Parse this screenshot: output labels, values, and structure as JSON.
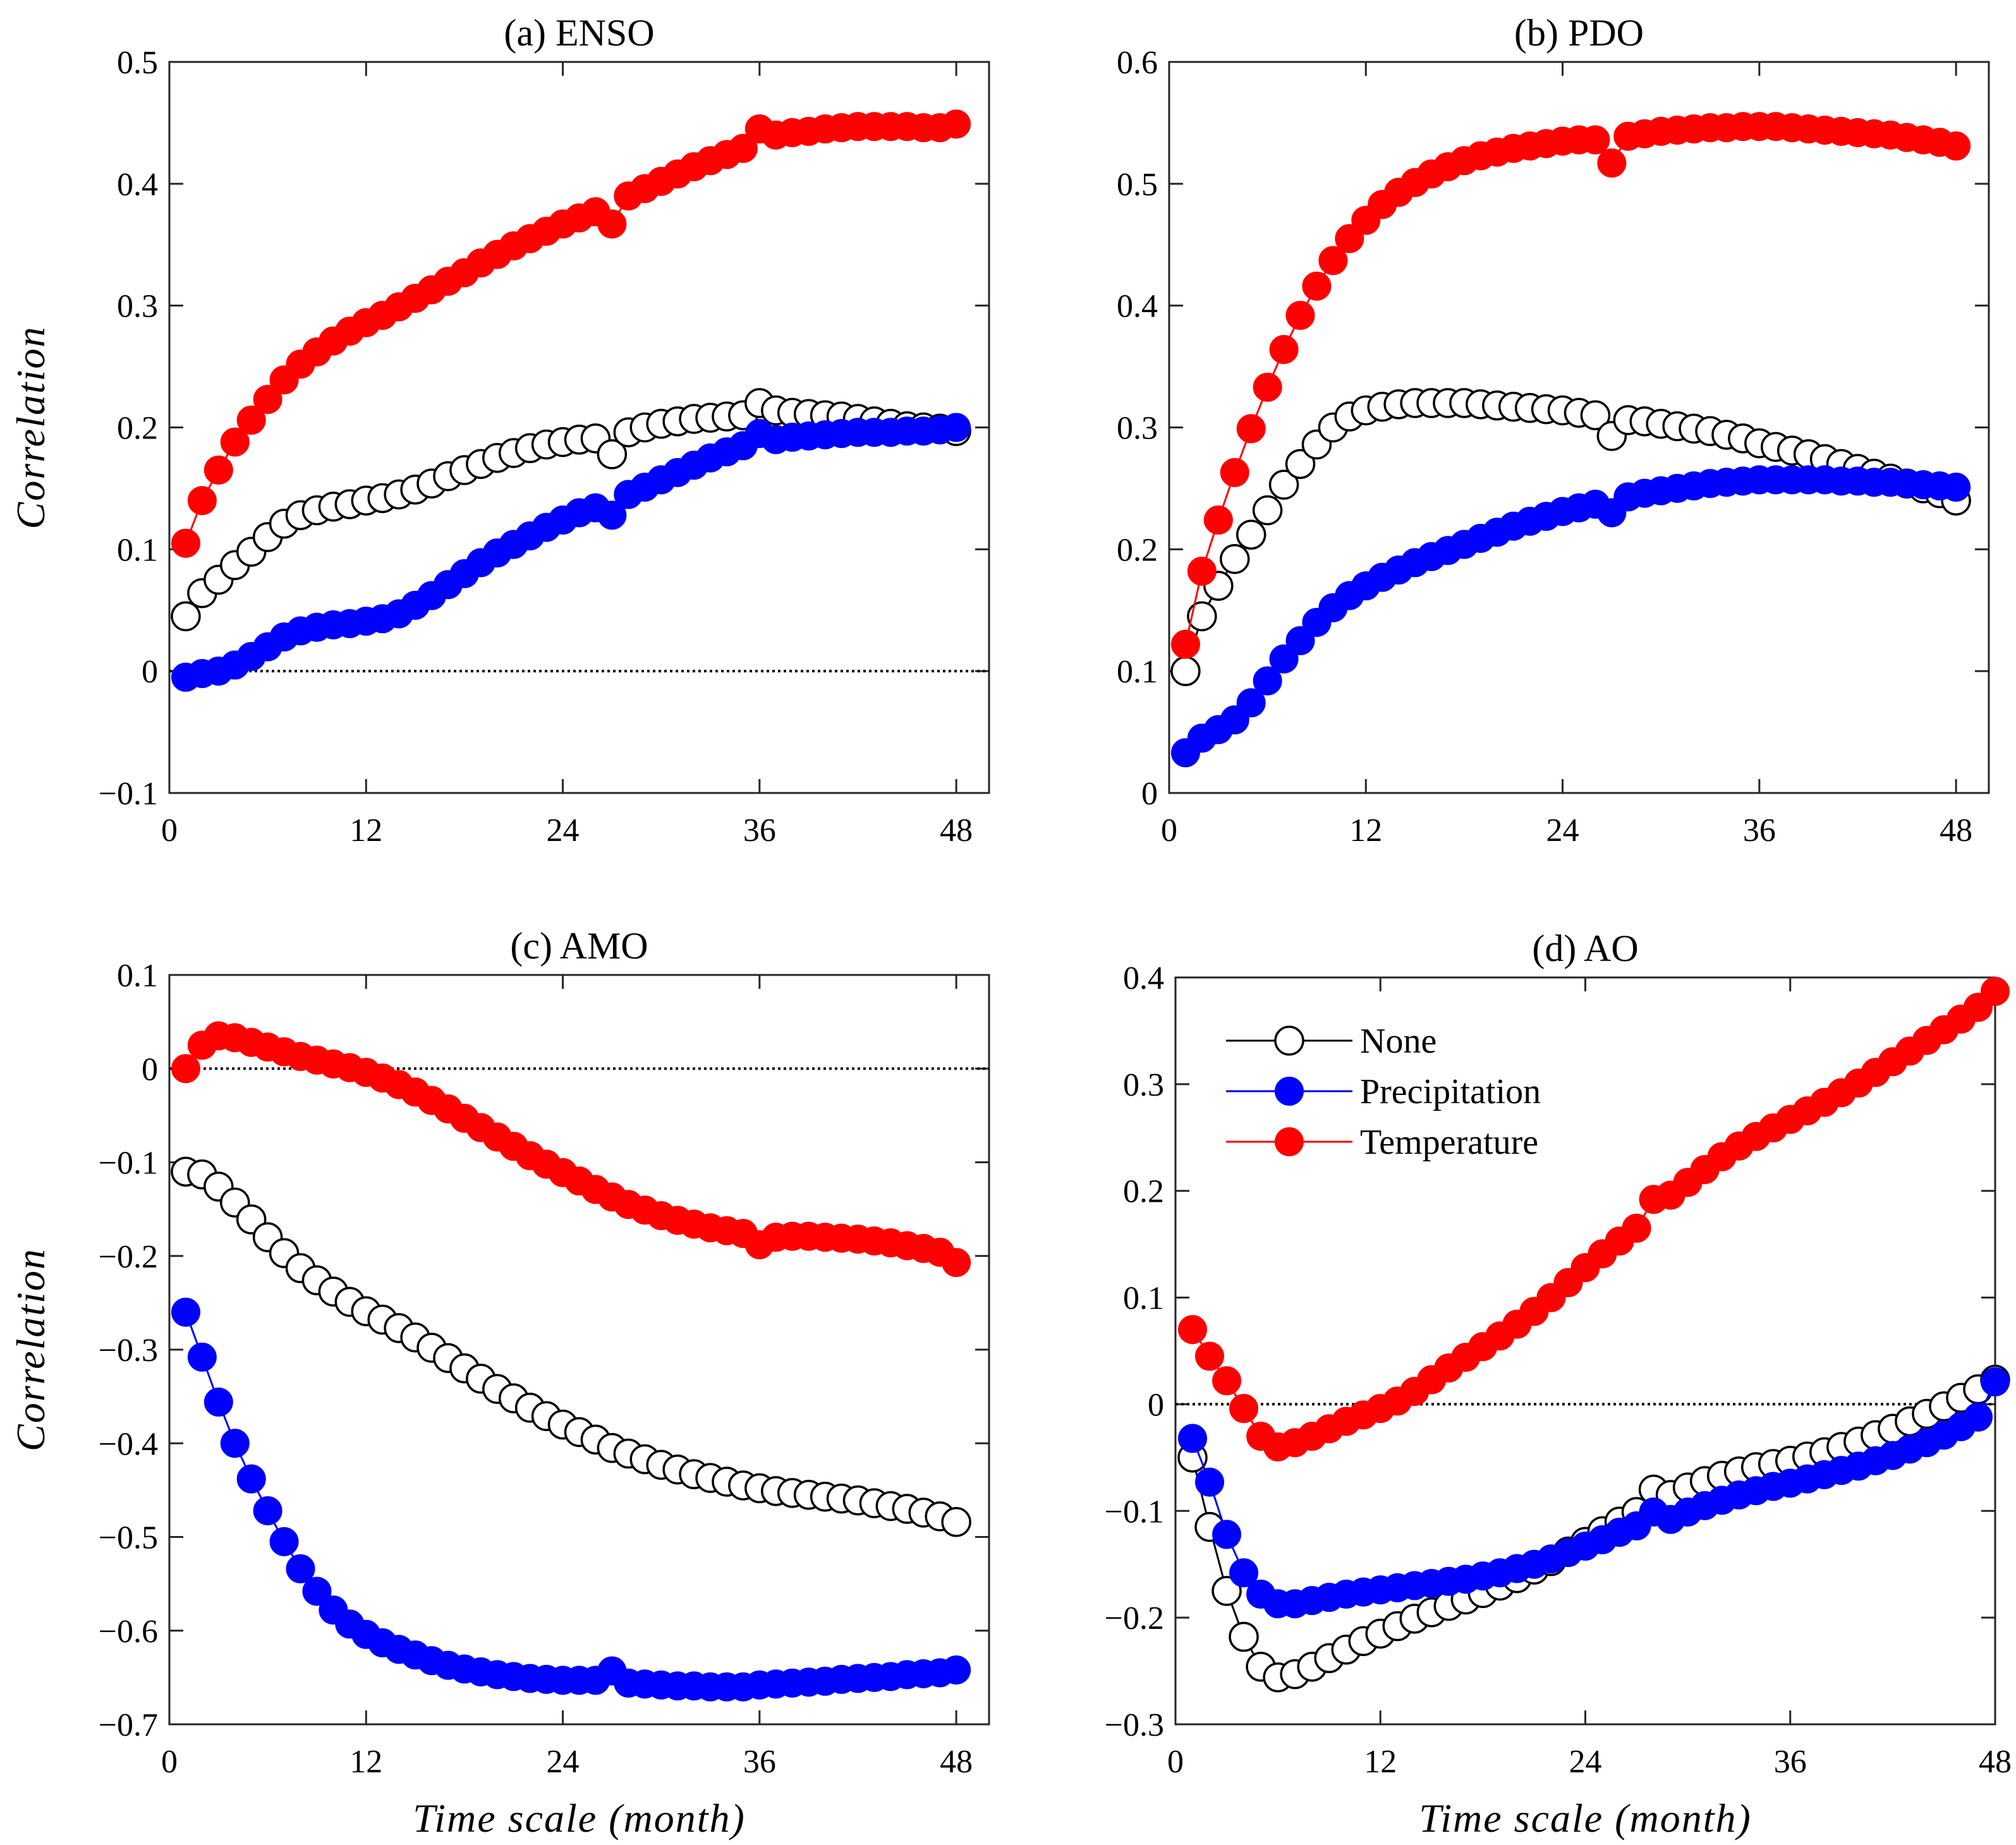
{
  "chart_data": [
    {
      "type": "line",
      "title": "(a) ENSO",
      "xlabel": "",
      "ylabel": "Correlation",
      "xlim": [
        0,
        50
      ],
      "ylim": [
        -0.1,
        0.5
      ],
      "xticks": [
        0,
        12,
        24,
        36,
        48
      ],
      "xtick_labels": [
        "0",
        "12",
        "24",
        "36",
        "48"
      ],
      "yticks": [
        -0.1,
        0,
        0.1,
        0.2,
        0.3,
        0.4,
        0.5
      ],
      "ytick_labels": [
        "−0.1",
        "0",
        "0.1",
        "0.2",
        "0.3",
        "0.4",
        "0.5"
      ],
      "zero_line": true,
      "grid": false,
      "legend": false,
      "x": [
        1,
        2,
        3,
        4,
        5,
        6,
        7,
        8,
        9,
        10,
        11,
        12,
        13,
        14,
        15,
        16,
        17,
        18,
        19,
        20,
        21,
        22,
        23,
        24,
        25,
        26,
        27,
        28,
        29,
        30,
        31,
        32,
        33,
        34,
        35,
        36,
        37,
        38,
        39,
        40,
        41,
        42,
        43,
        44,
        45,
        46,
        47,
        48
      ],
      "series": [
        {
          "name": "None",
          "color": "#000000",
          "fill": "#ffffff",
          "values": [
            0.045,
            0.064,
            0.075,
            0.087,
            0.098,
            0.11,
            0.121,
            0.128,
            0.132,
            0.135,
            0.137,
            0.14,
            0.142,
            0.145,
            0.149,
            0.154,
            0.16,
            0.165,
            0.17,
            0.175,
            0.179,
            0.183,
            0.186,
            0.188,
            0.19,
            0.191,
            0.178,
            0.196,
            0.2,
            0.203,
            0.205,
            0.207,
            0.208,
            0.209,
            0.21,
            0.22,
            0.214,
            0.212,
            0.211,
            0.21,
            0.209,
            0.207,
            0.205,
            0.203,
            0.201,
            0.2,
            0.199,
            0.197
          ]
        },
        {
          "name": "Precipitation",
          "color": "#0000ff",
          "fill": "#0000ff",
          "values": [
            -0.005,
            -0.002,
            0.0,
            0.005,
            0.012,
            0.02,
            0.028,
            0.033,
            0.036,
            0.038,
            0.039,
            0.041,
            0.043,
            0.047,
            0.054,
            0.062,
            0.071,
            0.08,
            0.089,
            0.097,
            0.104,
            0.111,
            0.118,
            0.124,
            0.13,
            0.134,
            0.128,
            0.145,
            0.151,
            0.157,
            0.163,
            0.169,
            0.175,
            0.18,
            0.185,
            0.195,
            0.19,
            0.192,
            0.193,
            0.194,
            0.195,
            0.196,
            0.196,
            0.196,
            0.197,
            0.197,
            0.198,
            0.2
          ]
        },
        {
          "name": "Temperature",
          "color": "#ff0000",
          "fill": "#ff0000",
          "values": [
            0.105,
            0.14,
            0.165,
            0.188,
            0.206,
            0.223,
            0.239,
            0.252,
            0.262,
            0.271,
            0.279,
            0.286,
            0.292,
            0.299,
            0.306,
            0.313,
            0.32,
            0.327,
            0.335,
            0.342,
            0.349,
            0.355,
            0.361,
            0.367,
            0.372,
            0.377,
            0.367,
            0.39,
            0.396,
            0.402,
            0.408,
            0.414,
            0.419,
            0.424,
            0.429,
            0.445,
            0.44,
            0.442,
            0.443,
            0.445,
            0.446,
            0.447,
            0.447,
            0.447,
            0.447,
            0.446,
            0.446,
            0.449
          ]
        }
      ]
    },
    {
      "type": "line",
      "title": "(b) PDO",
      "xlabel": "",
      "ylabel": "",
      "xlim": [
        0,
        50
      ],
      "ylim": [
        0,
        0.6
      ],
      "xticks": [
        0,
        12,
        24,
        36,
        48
      ],
      "xtick_labels": [
        "0",
        "12",
        "24",
        "36",
        "48"
      ],
      "yticks": [
        0,
        0.1,
        0.2,
        0.3,
        0.4,
        0.5,
        0.6
      ],
      "ytick_labels": [
        "0",
        "0.1",
        "0.2",
        "0.3",
        "0.4",
        "0.5",
        "0.6"
      ],
      "zero_line": false,
      "grid": false,
      "legend": false,
      "x": [
        1,
        2,
        3,
        4,
        5,
        6,
        7,
        8,
        9,
        10,
        11,
        12,
        13,
        14,
        15,
        16,
        17,
        18,
        19,
        20,
        21,
        22,
        23,
        24,
        25,
        26,
        27,
        28,
        29,
        30,
        31,
        32,
        33,
        34,
        35,
        36,
        37,
        38,
        39,
        40,
        41,
        42,
        43,
        44,
        45,
        46,
        47,
        48
      ],
      "series": [
        {
          "name": "None",
          "color": "#000000",
          "fill": "#ffffff",
          "values": [
            0.1,
            0.145,
            0.17,
            0.192,
            0.212,
            0.232,
            0.253,
            0.27,
            0.286,
            0.3,
            0.309,
            0.314,
            0.317,
            0.319,
            0.32,
            0.32,
            0.32,
            0.32,
            0.319,
            0.318,
            0.317,
            0.316,
            0.315,
            0.314,
            0.312,
            0.31,
            0.293,
            0.306,
            0.305,
            0.303,
            0.301,
            0.299,
            0.297,
            0.294,
            0.291,
            0.287,
            0.284,
            0.281,
            0.278,
            0.274,
            0.27,
            0.266,
            0.262,
            0.258,
            0.254,
            0.25,
            0.246,
            0.24
          ]
        },
        {
          "name": "Precipitation",
          "color": "#0000ff",
          "fill": "#0000ff",
          "values": [
            0.033,
            0.045,
            0.052,
            0.06,
            0.074,
            0.092,
            0.11,
            0.125,
            0.14,
            0.152,
            0.162,
            0.17,
            0.177,
            0.183,
            0.189,
            0.194,
            0.199,
            0.204,
            0.209,
            0.214,
            0.219,
            0.223,
            0.227,
            0.231,
            0.234,
            0.237,
            0.23,
            0.243,
            0.246,
            0.248,
            0.25,
            0.252,
            0.254,
            0.255,
            0.256,
            0.257,
            0.257,
            0.257,
            0.257,
            0.257,
            0.256,
            0.256,
            0.255,
            0.255,
            0.254,
            0.253,
            0.252,
            0.251
          ]
        },
        {
          "name": "Temperature",
          "color": "#ff0000",
          "fill": "#ff0000",
          "values": [
            0.122,
            0.182,
            0.224,
            0.263,
            0.299,
            0.333,
            0.364,
            0.392,
            0.416,
            0.437,
            0.455,
            0.47,
            0.483,
            0.493,
            0.501,
            0.508,
            0.514,
            0.519,
            0.523,
            0.526,
            0.529,
            0.531,
            0.533,
            0.535,
            0.536,
            0.536,
            0.517,
            0.539,
            0.541,
            0.543,
            0.544,
            0.545,
            0.546,
            0.546,
            0.547,
            0.547,
            0.547,
            0.546,
            0.545,
            0.544,
            0.543,
            0.542,
            0.541,
            0.54,
            0.538,
            0.536,
            0.534,
            0.531
          ]
        }
      ]
    },
    {
      "type": "line",
      "title": "(c) AMO",
      "xlabel": "Time scale (month)",
      "ylabel": "Correlation",
      "xlim": [
        0,
        50
      ],
      "ylim": [
        -0.7,
        0.1
      ],
      "xticks": [
        0,
        12,
        24,
        36,
        48
      ],
      "xtick_labels": [
        "0",
        "12",
        "24",
        "36",
        "48"
      ],
      "yticks": [
        -0.7,
        -0.6,
        -0.5,
        -0.4,
        -0.3,
        -0.2,
        -0.1,
        0,
        0.1
      ],
      "ytick_labels": [
        "−0.7",
        "−0.6",
        "−0.5",
        "−0.4",
        "−0.3",
        "−0.2",
        "−0.1",
        "0",
        "0.1"
      ],
      "zero_line": true,
      "grid": false,
      "legend": false,
      "x": [
        1,
        2,
        3,
        4,
        5,
        6,
        7,
        8,
        9,
        10,
        11,
        12,
        13,
        14,
        15,
        16,
        17,
        18,
        19,
        20,
        21,
        22,
        23,
        24,
        25,
        26,
        27,
        28,
        29,
        30,
        31,
        32,
        33,
        34,
        35,
        36,
        37,
        38,
        39,
        40,
        41,
        42,
        43,
        44,
        45,
        46,
        47,
        48
      ],
      "series": [
        {
          "name": "None",
          "color": "#000000",
          "fill": "#ffffff",
          "values": [
            -0.11,
            -0.113,
            -0.126,
            -0.143,
            -0.161,
            -0.18,
            -0.197,
            -0.213,
            -0.226,
            -0.238,
            -0.249,
            -0.259,
            -0.268,
            -0.277,
            -0.287,
            -0.298,
            -0.309,
            -0.32,
            -0.331,
            -0.342,
            -0.352,
            -0.362,
            -0.371,
            -0.38,
            -0.388,
            -0.396,
            -0.405,
            -0.411,
            -0.417,
            -0.423,
            -0.428,
            -0.433,
            -0.437,
            -0.441,
            -0.445,
            -0.448,
            -0.451,
            -0.453,
            -0.455,
            -0.457,
            -0.459,
            -0.461,
            -0.464,
            -0.467,
            -0.47,
            -0.474,
            -0.478,
            -0.484
          ]
        },
        {
          "name": "Precipitation",
          "color": "#0000ff",
          "fill": "#0000ff",
          "values": [
            -0.26,
            -0.308,
            -0.356,
            -0.4,
            -0.438,
            -0.472,
            -0.505,
            -0.534,
            -0.558,
            -0.578,
            -0.593,
            -0.604,
            -0.613,
            -0.62,
            -0.626,
            -0.632,
            -0.637,
            -0.641,
            -0.644,
            -0.647,
            -0.649,
            -0.651,
            -0.652,
            -0.653,
            -0.653,
            -0.653,
            -0.643,
            -0.656,
            -0.657,
            -0.658,
            -0.659,
            -0.659,
            -0.66,
            -0.66,
            -0.66,
            -0.658,
            -0.657,
            -0.656,
            -0.655,
            -0.654,
            -0.652,
            -0.651,
            -0.65,
            -0.649,
            -0.647,
            -0.646,
            -0.645,
            -0.642
          ]
        },
        {
          "name": "Temperature",
          "color": "#ff0000",
          "fill": "#ff0000",
          "values": [
            0.0,
            0.025,
            0.035,
            0.033,
            0.028,
            0.023,
            0.018,
            0.013,
            0.009,
            0.005,
            0.001,
            -0.004,
            -0.01,
            -0.017,
            -0.025,
            -0.034,
            -0.043,
            -0.053,
            -0.063,
            -0.073,
            -0.083,
            -0.093,
            -0.102,
            -0.111,
            -0.12,
            -0.129,
            -0.137,
            -0.145,
            -0.151,
            -0.157,
            -0.162,
            -0.166,
            -0.17,
            -0.173,
            -0.176,
            -0.188,
            -0.18,
            -0.179,
            -0.179,
            -0.18,
            -0.181,
            -0.182,
            -0.184,
            -0.186,
            -0.189,
            -0.192,
            -0.196,
            -0.207
          ]
        }
      ]
    },
    {
      "type": "line",
      "title": "(d) AO",
      "xlabel": "Time scale (month)",
      "ylabel": "",
      "xlim": [
        0,
        48
      ],
      "ylim": [
        -0.3,
        0.4
      ],
      "xticks": [
        0,
        12,
        24,
        36,
        48
      ],
      "xtick_labels": [
        "0",
        "12",
        "24",
        "36",
        "48"
      ],
      "yticks": [
        -0.3,
        -0.2,
        -0.1,
        0,
        0.1,
        0.2,
        0.3,
        0.4
      ],
      "ytick_labels": [
        "−0.3",
        "−0.2",
        "−0.1",
        "0",
        "0.1",
        "0.2",
        "0.3",
        "0.4"
      ],
      "zero_line": true,
      "grid": false,
      "legend": true,
      "legend_position": "top-left",
      "x": [
        1,
        2,
        3,
        4,
        5,
        6,
        7,
        8,
        9,
        10,
        11,
        12,
        13,
        14,
        15,
        16,
        17,
        18,
        19,
        20,
        21,
        22,
        23,
        24,
        25,
        26,
        27,
        28,
        29,
        30,
        31,
        32,
        33,
        34,
        35,
        36,
        37,
        38,
        39,
        40,
        41,
        42,
        43,
        44,
        45,
        46,
        47,
        48
      ],
      "series": [
        {
          "name": "None",
          "color": "#000000",
          "fill": "#ffffff",
          "values": [
            -0.05,
            -0.115,
            -0.175,
            -0.218,
            -0.246,
            -0.256,
            -0.253,
            -0.246,
            -0.238,
            -0.23,
            -0.222,
            -0.215,
            -0.208,
            -0.201,
            -0.195,
            -0.189,
            -0.183,
            -0.177,
            -0.17,
            -0.163,
            -0.155,
            -0.147,
            -0.138,
            -0.129,
            -0.119,
            -0.11,
            -0.101,
            -0.08,
            -0.085,
            -0.078,
            -0.072,
            -0.067,
            -0.063,
            -0.059,
            -0.056,
            -0.053,
            -0.049,
            -0.045,
            -0.04,
            -0.035,
            -0.029,
            -0.023,
            -0.016,
            -0.009,
            -0.002,
            0.006,
            0.014,
            0.023
          ]
        },
        {
          "name": "Precipitation",
          "color": "#0000ff",
          "fill": "#0000ff",
          "values": [
            -0.032,
            -0.073,
            -0.122,
            -0.158,
            -0.178,
            -0.187,
            -0.187,
            -0.184,
            -0.181,
            -0.178,
            -0.176,
            -0.174,
            -0.172,
            -0.17,
            -0.168,
            -0.166,
            -0.164,
            -0.161,
            -0.158,
            -0.154,
            -0.15,
            -0.145,
            -0.139,
            -0.133,
            -0.127,
            -0.12,
            -0.114,
            -0.101,
            -0.108,
            -0.101,
            -0.095,
            -0.09,
            -0.085,
            -0.081,
            -0.077,
            -0.074,
            -0.07,
            -0.066,
            -0.062,
            -0.058,
            -0.053,
            -0.048,
            -0.042,
            -0.036,
            -0.029,
            -0.021,
            -0.012,
            0.021
          ]
        },
        {
          "name": "Temperature",
          "color": "#ff0000",
          "fill": "#ff0000",
          "values": [
            0.07,
            0.045,
            0.022,
            -0.004,
            -0.03,
            -0.04,
            -0.036,
            -0.03,
            -0.023,
            -0.016,
            -0.01,
            -0.004,
            0.003,
            0.012,
            0.023,
            0.034,
            0.044,
            0.054,
            0.064,
            0.075,
            0.087,
            0.1,
            0.114,
            0.128,
            0.141,
            0.153,
            0.165,
            0.192,
            0.196,
            0.208,
            0.22,
            0.232,
            0.242,
            0.251,
            0.259,
            0.267,
            0.275,
            0.283,
            0.292,
            0.301,
            0.311,
            0.321,
            0.331,
            0.341,
            0.351,
            0.361,
            0.372,
            0.387
          ]
        }
      ]
    }
  ]
}
